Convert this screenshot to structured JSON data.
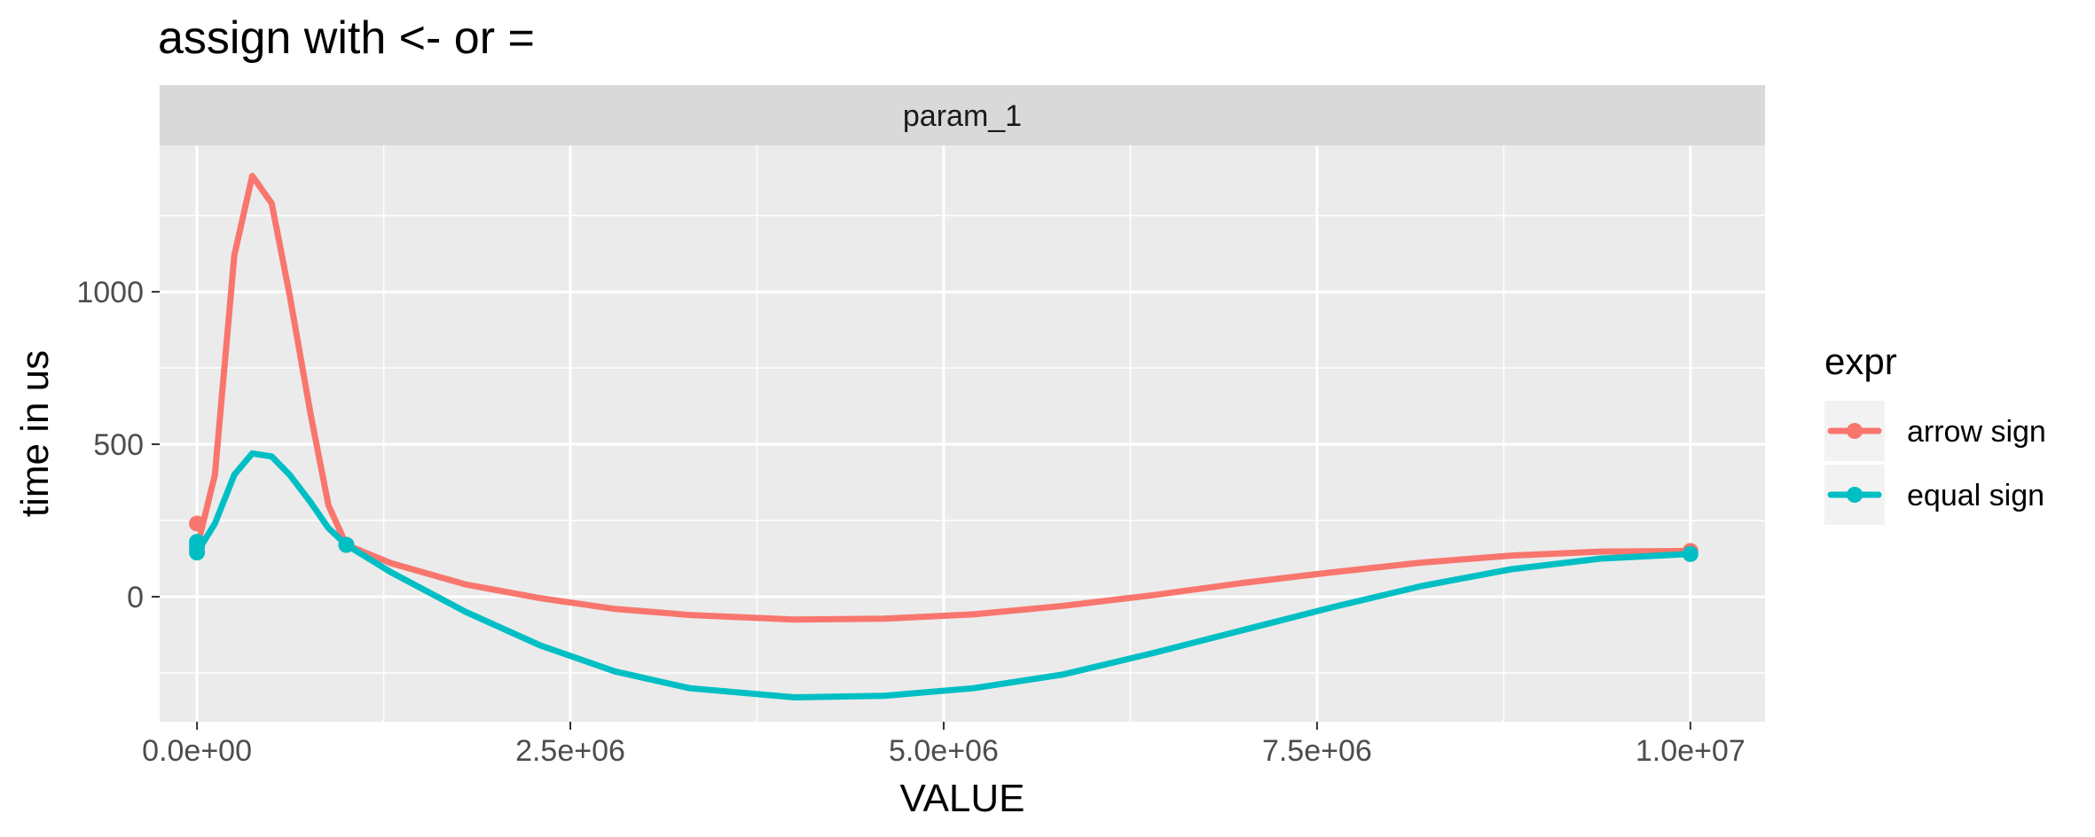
{
  "chart_data": {
    "type": "line",
    "title": "assign with <- or =",
    "facet": "param_1",
    "xlabel": "VALUE",
    "ylabel": "time in us",
    "xlim": [
      -250000,
      10500000
    ],
    "ylim": [
      -410,
      1480
    ],
    "x_ticks": [
      0,
      2500000,
      5000000,
      7500000,
      10000000
    ],
    "x_tick_labels": [
      "0.0e+00",
      "2.5e+06",
      "5.0e+06",
      "7.5e+06",
      "1.0e+07"
    ],
    "y_ticks": [
      0,
      500,
      1000
    ],
    "y_tick_labels": [
      "0",
      "500",
      "1000"
    ],
    "grid": true,
    "legend": {
      "title": "expr",
      "position": "right"
    },
    "series": [
      {
        "name": "arrow sign",
        "color": "#F8766D",
        "points": [
          [
            1,
            240
          ],
          [
            10,
            160
          ],
          [
            100,
            175
          ],
          [
            1000000,
            170
          ],
          [
            10000000,
            150
          ]
        ],
        "smooth": [
          [
            0,
            160
          ],
          [
            120000,
            400
          ],
          [
            250000,
            1120
          ],
          [
            370000,
            1380
          ],
          [
            500000,
            1290
          ],
          [
            620000,
            990
          ],
          [
            760000,
            600
          ],
          [
            880000,
            300
          ],
          [
            1000000,
            170
          ],
          [
            1300000,
            110
          ],
          [
            1800000,
            40
          ],
          [
            2300000,
            -5
          ],
          [
            2800000,
            -40
          ],
          [
            3300000,
            -60
          ],
          [
            4000000,
            -75
          ],
          [
            4600000,
            -72
          ],
          [
            5200000,
            -58
          ],
          [
            5800000,
            -30
          ],
          [
            6400000,
            5
          ],
          [
            7000000,
            45
          ],
          [
            7600000,
            80
          ],
          [
            8200000,
            112
          ],
          [
            8800000,
            135
          ],
          [
            9400000,
            148
          ],
          [
            10000000,
            150
          ]
        ]
      },
      {
        "name": "equal sign",
        "color": "#00BFC4",
        "points": [
          [
            1,
            145
          ],
          [
            10,
            165
          ],
          [
            100,
            180
          ],
          [
            1000000,
            170
          ],
          [
            10000000,
            140
          ]
        ],
        "smooth": [
          [
            0,
            145
          ],
          [
            120000,
            240
          ],
          [
            250000,
            400
          ],
          [
            370000,
            470
          ],
          [
            500000,
            460
          ],
          [
            620000,
            400
          ],
          [
            760000,
            310
          ],
          [
            880000,
            225
          ],
          [
            1000000,
            170
          ],
          [
            1300000,
            80
          ],
          [
            1800000,
            -50
          ],
          [
            2300000,
            -160
          ],
          [
            2800000,
            -245
          ],
          [
            3300000,
            -300
          ],
          [
            4000000,
            -330
          ],
          [
            4600000,
            -325
          ],
          [
            5200000,
            -300
          ],
          [
            5800000,
            -255
          ],
          [
            6400000,
            -185
          ],
          [
            7000000,
            -110
          ],
          [
            7600000,
            -35
          ],
          [
            8200000,
            35
          ],
          [
            8800000,
            90
          ],
          [
            9400000,
            125
          ],
          [
            10000000,
            140
          ]
        ]
      }
    ]
  }
}
